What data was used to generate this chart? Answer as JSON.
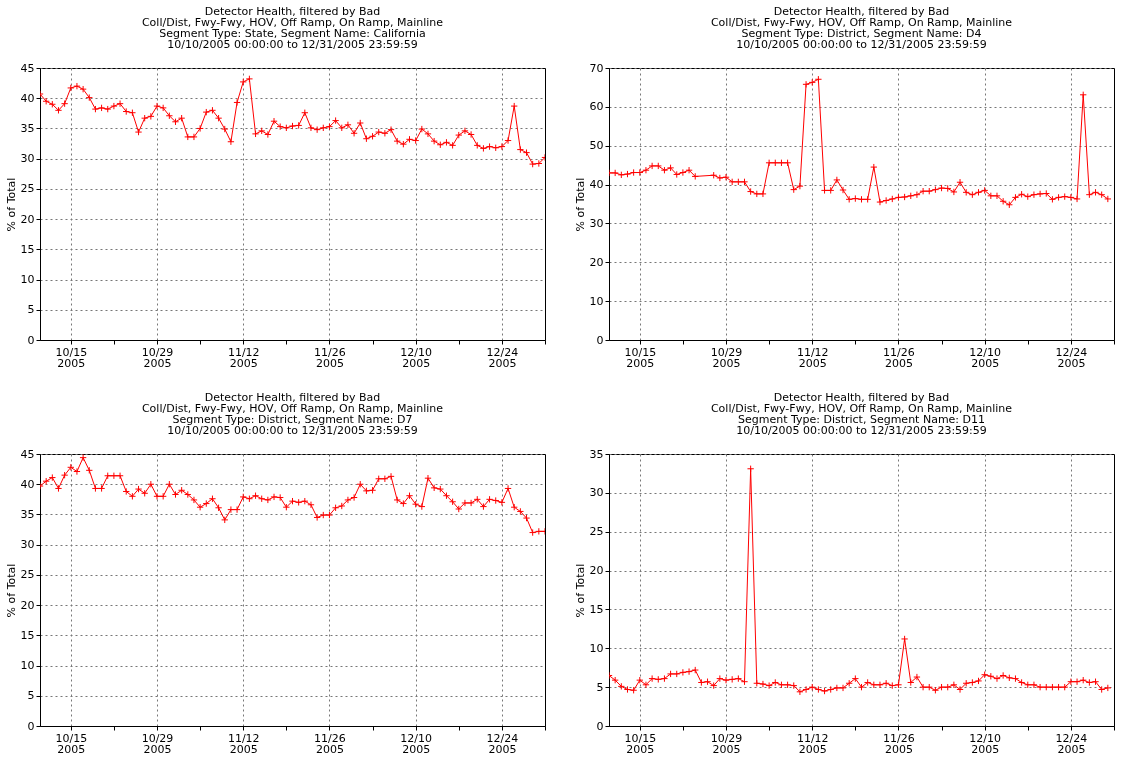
{
  "chart_data": [
    {
      "type": "line",
      "title": "Detector Health, filtered by Bad",
      "subtitle": "Coll/Dist, Fwy-Fwy, HOV, Off Ramp, On Ramp, Mainline\nSegment Type: State, Segment Name: California\n10/10/2005 00:00:00 to 12/31/2005 23:59:59",
      "ylabel": "% of Total",
      "marker": "cross",
      "grid": true,
      "xlim": [
        "2005-10-10",
        "2005-12-31"
      ],
      "ylim": [
        0,
        45
      ],
      "yticks": [
        0,
        5,
        10,
        15,
        20,
        25,
        30,
        35,
        40,
        45
      ],
      "xticks": [
        {
          "value": "2005-10-15",
          "label": "10/15\n2005"
        },
        {
          "value": "2005-10-22",
          "label": null
        },
        {
          "value": "2005-10-29",
          "label": "10/29\n2005"
        },
        {
          "value": "2005-11-05",
          "label": null
        },
        {
          "value": "2005-11-12",
          "label": "11/12\n2005"
        },
        {
          "value": "2005-11-19",
          "label": null
        },
        {
          "value": "2005-11-26",
          "label": "11/26\n2005"
        },
        {
          "value": "2005-12-03",
          "label": null
        },
        {
          "value": "2005-12-10",
          "label": "12/10\n2005"
        },
        {
          "value": "2005-12-17",
          "label": null
        },
        {
          "value": "2005-12-24",
          "label": "12/24\n2005"
        },
        {
          "value": "2005-12-31",
          "label": null
        }
      ],
      "x": [
        "2005-10-10",
        "2005-10-11",
        "2005-10-12",
        "2005-10-13",
        "2005-10-14",
        "2005-10-15",
        "2005-10-16",
        "2005-10-17",
        "2005-10-18",
        "2005-10-19",
        "2005-10-20",
        "2005-10-21",
        "2005-10-22",
        "2005-10-23",
        "2005-10-24",
        "2005-10-25",
        "2005-10-26",
        "2005-10-27",
        "2005-10-28",
        "2005-10-29",
        "2005-10-30",
        "2005-10-31",
        "2005-11-01",
        "2005-11-02",
        "2005-11-03",
        "2005-11-04",
        "2005-11-05",
        "2005-11-06",
        "2005-11-07",
        "2005-11-08",
        "2005-11-09",
        "2005-11-10",
        "2005-11-11",
        "2005-11-12",
        "2005-11-13",
        "2005-11-14",
        "2005-11-15",
        "2005-11-16",
        "2005-11-17",
        "2005-11-18",
        "2005-11-19",
        "2005-11-20",
        "2005-11-21",
        "2005-11-22",
        "2005-11-23",
        "2005-11-24",
        "2005-11-25",
        "2005-11-26",
        "2005-11-27",
        "2005-11-28",
        "2005-11-29",
        "2005-11-30",
        "2005-12-01",
        "2005-12-02",
        "2005-12-03",
        "2005-12-04",
        "2005-12-05",
        "2005-12-06",
        "2005-12-07",
        "2005-12-08",
        "2005-12-09",
        "2005-12-10",
        "2005-12-11",
        "2005-12-12",
        "2005-12-13",
        "2005-12-14",
        "2005-12-15",
        "2005-12-16",
        "2005-12-17",
        "2005-12-18",
        "2005-12-19",
        "2005-12-20",
        "2005-12-21",
        "2005-12-22",
        "2005-12-23",
        "2005-12-24",
        "2005-12-25",
        "2005-12-26",
        "2005-12-27",
        "2005-12-28",
        "2005-12-29",
        "2005-12-30",
        "2005-12-31"
      ],
      "series": [
        {
          "color": "#ff0000",
          "values": [
            40.7,
            39.5,
            39.0,
            38.0,
            39.1,
            41.7,
            42.0,
            41.5,
            40.1,
            38.2,
            38.4,
            38.2,
            38.7,
            39.1,
            37.8,
            37.6,
            34.4,
            36.7,
            37.0,
            38.7,
            38.4,
            37.1,
            36.1,
            36.7,
            33.6,
            33.6,
            35.0,
            37.7,
            38.0,
            36.7,
            34.9,
            32.8,
            39.3,
            42.7,
            43.2,
            34.1,
            34.6,
            34.0,
            36.2,
            35.3,
            35.1,
            35.4,
            35.5,
            37.6,
            35.1,
            34.8,
            35.1,
            35.3,
            36.3,
            35.1,
            35.6,
            34.2,
            35.9,
            33.3,
            33.7,
            34.4,
            34.2,
            34.8,
            32.9,
            32.4,
            33.2,
            33.0,
            34.9,
            34.1,
            32.9,
            32.3,
            32.7,
            32.2,
            33.9,
            34.6,
            34.0,
            32.2,
            31.7,
            32.0,
            31.8,
            32.0,
            33.0,
            38.7,
            31.5,
            31.0,
            29.1,
            29.2,
            30.2
          ]
        }
      ]
    },
    {
      "type": "line",
      "title": "Detector Health, filtered by Bad",
      "subtitle": "Coll/Dist, Fwy-Fwy, HOV, Off Ramp, On Ramp, Mainline\nSegment Type: District, Segment Name: D4\n10/10/2005 00:00:00 to 12/31/2005 23:59:59",
      "ylabel": "% of Total",
      "marker": "cross",
      "grid": true,
      "xlim": [
        "2005-10-10",
        "2005-12-31"
      ],
      "ylim": [
        0,
        70
      ],
      "yticks": [
        0,
        10,
        20,
        30,
        40,
        50,
        60,
        70
      ],
      "xticks": [
        {
          "value": "2005-10-15",
          "label": "10/15\n2005"
        },
        {
          "value": "2005-10-22",
          "label": null
        },
        {
          "value": "2005-10-29",
          "label": "10/29\n2005"
        },
        {
          "value": "2005-11-05",
          "label": null
        },
        {
          "value": "2005-11-12",
          "label": "11/12\n2005"
        },
        {
          "value": "2005-11-19",
          "label": null
        },
        {
          "value": "2005-11-26",
          "label": "11/26\n2005"
        },
        {
          "value": "2005-12-03",
          "label": null
        },
        {
          "value": "2005-12-10",
          "label": "12/10\n2005"
        },
        {
          "value": "2005-12-17",
          "label": null
        },
        {
          "value": "2005-12-24",
          "label": "12/24\n2005"
        },
        {
          "value": "2005-12-31",
          "label": null
        }
      ],
      "x": [
        "2005-10-10",
        "2005-10-11",
        "2005-10-12",
        "2005-10-13",
        "2005-10-14",
        "2005-10-15",
        "2005-10-16",
        "2005-10-17",
        "2005-10-18",
        "2005-10-19",
        "2005-10-20",
        "2005-10-21",
        "2005-10-22",
        "2005-10-23",
        "2005-10-24",
        "2005-10-27",
        "2005-10-28",
        "2005-10-29",
        "2005-10-30",
        "2005-10-31",
        "2005-11-01",
        "2005-11-02",
        "2005-11-03",
        "2005-11-04",
        "2005-11-05",
        "2005-11-06",
        "2005-11-07",
        "2005-11-08",
        "2005-11-09",
        "2005-11-10",
        "2005-11-11",
        "2005-11-12",
        "2005-11-13",
        "2005-11-14",
        "2005-11-15",
        "2005-11-16",
        "2005-11-17",
        "2005-11-18",
        "2005-11-19",
        "2005-11-20",
        "2005-11-21",
        "2005-11-22",
        "2005-11-23",
        "2005-11-24",
        "2005-11-25",
        "2005-11-26",
        "2005-11-27",
        "2005-11-28",
        "2005-11-29",
        "2005-11-30",
        "2005-12-01",
        "2005-12-02",
        "2005-12-03",
        "2005-12-04",
        "2005-12-05",
        "2005-12-06",
        "2005-12-07",
        "2005-12-08",
        "2005-12-09",
        "2005-12-10",
        "2005-12-11",
        "2005-12-12",
        "2005-12-13",
        "2005-12-14",
        "2005-12-15",
        "2005-12-16",
        "2005-12-17",
        "2005-12-18",
        "2005-12-19",
        "2005-12-20",
        "2005-12-21",
        "2005-12-22",
        "2005-12-23",
        "2005-12-24",
        "2005-12-25",
        "2005-12-26",
        "2005-12-27",
        "2005-12-28",
        "2005-12-29",
        "2005-12-30"
      ],
      "series": [
        {
          "color": "#ff0000",
          "values": [
            43.0,
            43.0,
            42.5,
            42.7,
            43.1,
            43.1,
            43.7,
            44.8,
            44.8,
            43.7,
            44.3,
            42.6,
            43.1,
            43.7,
            42.1,
            42.4,
            41.7,
            41.9,
            40.7,
            40.7,
            40.7,
            38.2,
            37.6,
            37.6,
            45.6,
            45.6,
            45.6,
            45.6,
            38.7,
            39.6,
            65.8,
            66.3,
            67.1,
            38.5,
            38.5,
            41.2,
            38.6,
            36.2,
            36.4,
            36.2,
            36.2,
            44.5,
            35.5,
            35.9,
            36.3,
            36.7,
            36.8,
            37.1,
            37.4,
            38.3,
            38.3,
            38.7,
            39.1,
            39.0,
            38.1,
            40.6,
            38.0,
            37.4,
            38.0,
            38.5,
            37.1,
            37.1,
            35.7,
            34.8,
            36.7,
            37.5,
            36.9,
            37.4,
            37.6,
            37.7,
            36.2,
            36.7,
            36.9,
            36.7,
            36.3,
            63.1,
            37.4,
            38.0,
            37.4,
            36.3
          ]
        }
      ]
    },
    {
      "type": "line",
      "title": "Detector Health, filtered by Bad",
      "subtitle": "Coll/Dist, Fwy-Fwy, HOV, Off Ramp, On Ramp, Mainline\nSegment Type: District, Segment Name: D7\n10/10/2005 00:00:00 to 12/31/2005 23:59:59",
      "ylabel": "% of Total",
      "marker": "cross",
      "grid": true,
      "xlim": [
        "2005-10-10",
        "2005-12-31"
      ],
      "ylim": [
        0,
        45
      ],
      "yticks": [
        0,
        5,
        10,
        15,
        20,
        25,
        30,
        35,
        40,
        45
      ],
      "xticks": [
        {
          "value": "2005-10-15",
          "label": "10/15\n2005"
        },
        {
          "value": "2005-10-22",
          "label": null
        },
        {
          "value": "2005-10-29",
          "label": "10/29\n2005"
        },
        {
          "value": "2005-11-05",
          "label": null
        },
        {
          "value": "2005-11-12",
          "label": "11/12\n2005"
        },
        {
          "value": "2005-11-19",
          "label": null
        },
        {
          "value": "2005-11-26",
          "label": "11/26\n2005"
        },
        {
          "value": "2005-12-03",
          "label": null
        },
        {
          "value": "2005-12-10",
          "label": "12/10\n2005"
        },
        {
          "value": "2005-12-17",
          "label": null
        },
        {
          "value": "2005-12-24",
          "label": "12/24\n2005"
        },
        {
          "value": "2005-12-31",
          "label": null
        }
      ],
      "x": [
        "2005-10-10",
        "2005-10-11",
        "2005-10-12",
        "2005-10-13",
        "2005-10-14",
        "2005-10-15",
        "2005-10-16",
        "2005-10-17",
        "2005-10-18",
        "2005-10-19",
        "2005-10-20",
        "2005-10-21",
        "2005-10-22",
        "2005-10-23",
        "2005-10-24",
        "2005-10-25",
        "2005-10-26",
        "2005-10-27",
        "2005-10-28",
        "2005-10-29",
        "2005-10-30",
        "2005-10-31",
        "2005-11-01",
        "2005-11-02",
        "2005-11-03",
        "2005-11-04",
        "2005-11-05",
        "2005-11-06",
        "2005-11-07",
        "2005-11-08",
        "2005-11-09",
        "2005-11-10",
        "2005-11-11",
        "2005-11-12",
        "2005-11-13",
        "2005-11-14",
        "2005-11-15",
        "2005-11-16",
        "2005-11-17",
        "2005-11-18",
        "2005-11-19",
        "2005-11-20",
        "2005-11-21",
        "2005-11-22",
        "2005-11-23",
        "2005-11-24",
        "2005-11-25",
        "2005-11-26",
        "2005-11-27",
        "2005-11-28",
        "2005-11-29",
        "2005-11-30",
        "2005-12-01",
        "2005-12-02",
        "2005-12-03",
        "2005-12-04",
        "2005-12-05",
        "2005-12-06",
        "2005-12-07",
        "2005-12-08",
        "2005-12-09",
        "2005-12-10",
        "2005-12-11",
        "2005-12-12",
        "2005-12-13",
        "2005-12-14",
        "2005-12-15",
        "2005-12-16",
        "2005-12-17",
        "2005-12-18",
        "2005-12-19",
        "2005-12-20",
        "2005-12-21",
        "2005-12-22",
        "2005-12-23",
        "2005-12-24",
        "2005-12-25",
        "2005-12-26",
        "2005-12-27",
        "2005-12-28",
        "2005-12-29",
        "2005-12-30",
        "2005-12-31"
      ],
      "series": [
        {
          "color": "#ff0000",
          "values": [
            39.7,
            40.5,
            41.1,
            39.3,
            41.5,
            42.8,
            42.1,
            44.4,
            42.3,
            39.3,
            39.3,
            41.4,
            41.4,
            41.4,
            38.8,
            38.0,
            39.2,
            38.5,
            40.0,
            38.0,
            38.0,
            40.0,
            38.3,
            39.0,
            38.3,
            37.4,
            36.2,
            36.8,
            37.6,
            36.1,
            34.1,
            35.8,
            35.8,
            37.9,
            37.6,
            38.1,
            37.6,
            37.4,
            37.9,
            37.8,
            36.2,
            37.2,
            37.0,
            37.2,
            36.6,
            34.5,
            34.9,
            34.9,
            36.1,
            36.4,
            37.4,
            37.8,
            40.0,
            38.9,
            39.0,
            40.9,
            40.9,
            41.3,
            37.4,
            36.8,
            38.1,
            36.7,
            36.3,
            41.0,
            39.4,
            39.2,
            38.1,
            37.1,
            35.9,
            36.9,
            36.9,
            37.5,
            36.3,
            37.5,
            37.3,
            37.0,
            39.3,
            36.2,
            35.5,
            34.4,
            32.0,
            32.2,
            32.2
          ]
        }
      ]
    },
    {
      "type": "line",
      "title": "Detector Health, filtered by Bad",
      "subtitle": "Coll/Dist, Fwy-Fwy, HOV, Off Ramp, On Ramp, Mainline\nSegment Type: District, Segment Name: D11\n10/10/2005 00:00:00 to 12/31/2005 23:59:59",
      "ylabel": "% of Total",
      "marker": "cross",
      "grid": true,
      "xlim": [
        "2005-10-10",
        "2005-12-31"
      ],
      "ylim": [
        0,
        35
      ],
      "yticks": [
        0,
        5,
        10,
        15,
        20,
        25,
        30,
        35
      ],
      "xticks": [
        {
          "value": "2005-10-15",
          "label": "10/15\n2005"
        },
        {
          "value": "2005-10-22",
          "label": null
        },
        {
          "value": "2005-10-29",
          "label": "10/29\n2005"
        },
        {
          "value": "2005-11-05",
          "label": null
        },
        {
          "value": "2005-11-12",
          "label": "11/12\n2005"
        },
        {
          "value": "2005-11-19",
          "label": null
        },
        {
          "value": "2005-11-26",
          "label": "11/26\n2005"
        },
        {
          "value": "2005-12-03",
          "label": null
        },
        {
          "value": "2005-12-10",
          "label": "12/10\n2005"
        },
        {
          "value": "2005-12-17",
          "label": null
        },
        {
          "value": "2005-12-24",
          "label": "12/24\n2005"
        },
        {
          "value": "2005-12-31",
          "label": null
        }
      ],
      "x": [
        "2005-10-10",
        "2005-10-11",
        "2005-10-12",
        "2005-10-13",
        "2005-10-14",
        "2005-10-15",
        "2005-10-16",
        "2005-10-17",
        "2005-10-18",
        "2005-10-19",
        "2005-10-20",
        "2005-10-21",
        "2005-10-22",
        "2005-10-23",
        "2005-10-24",
        "2005-10-25",
        "2005-10-26",
        "2005-10-27",
        "2005-10-28",
        "2005-10-29",
        "2005-10-30",
        "2005-10-31",
        "2005-11-01",
        "2005-11-02",
        "2005-11-03",
        "2005-11-04",
        "2005-11-05",
        "2005-11-06",
        "2005-11-07",
        "2005-11-08",
        "2005-11-09",
        "2005-11-10",
        "2005-11-11",
        "2005-11-12",
        "2005-11-13",
        "2005-11-14",
        "2005-11-15",
        "2005-11-16",
        "2005-11-17",
        "2005-11-18",
        "2005-11-19",
        "2005-11-20",
        "2005-11-21",
        "2005-11-22",
        "2005-11-23",
        "2005-11-24",
        "2005-11-25",
        "2005-11-26",
        "2005-11-27",
        "2005-11-28",
        "2005-11-29",
        "2005-11-30",
        "2005-12-01",
        "2005-12-02",
        "2005-12-03",
        "2005-12-04",
        "2005-12-05",
        "2005-12-06",
        "2005-12-07",
        "2005-12-08",
        "2005-12-09",
        "2005-12-10",
        "2005-12-11",
        "2005-12-12",
        "2005-12-13",
        "2005-12-14",
        "2005-12-15",
        "2005-12-16",
        "2005-12-17",
        "2005-12-18",
        "2005-12-19",
        "2005-12-20",
        "2005-12-21",
        "2005-12-22",
        "2005-12-23",
        "2005-12-24",
        "2005-12-25",
        "2005-12-26",
        "2005-12-27",
        "2005-12-28",
        "2005-12-29",
        "2005-12-30"
      ],
      "series": [
        {
          "color": "#ff0000",
          "values": [
            6.5,
            5.9,
            5.1,
            4.7,
            4.6,
            5.9,
            5.3,
            6.1,
            6.0,
            6.1,
            6.7,
            6.7,
            6.9,
            7.0,
            7.2,
            5.6,
            5.7,
            5.2,
            6.1,
            5.9,
            6.0,
            6.1,
            5.7,
            33.1,
            5.5,
            5.4,
            5.2,
            5.6,
            5.3,
            5.3,
            5.2,
            4.4,
            4.7,
            5.0,
            4.7,
            4.5,
            4.7,
            4.9,
            4.9,
            5.5,
            6.1,
            5.0,
            5.6,
            5.3,
            5.3,
            5.5,
            5.2,
            5.3,
            11.2,
            5.6,
            6.3,
            5.0,
            5.0,
            4.6,
            5.0,
            5.0,
            5.3,
            4.7,
            5.5,
            5.6,
            5.8,
            6.6,
            6.4,
            6.1,
            6.5,
            6.2,
            6.1,
            5.6,
            5.3,
            5.3,
            5.0,
            5.0,
            5.0,
            5.0,
            5.0,
            5.7,
            5.7,
            5.9,
            5.6,
            5.7,
            4.7,
            4.9
          ]
        }
      ]
    }
  ]
}
